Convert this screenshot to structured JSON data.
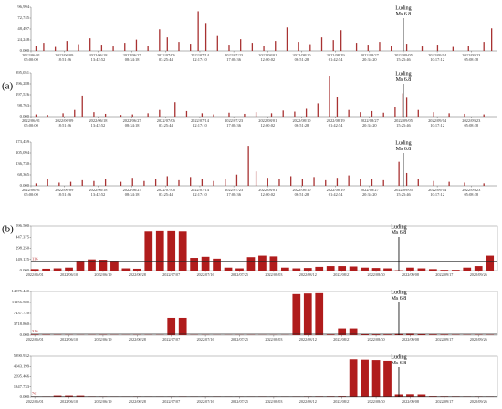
{
  "chart_data": [
    {
      "type": "bar",
      "panel_label": "(a)",
      "color": "#a83232",
      "xlim": [
        "2022/06/01 05:00:00",
        "2022/09/30 00:00:00"
      ],
      "xticks": [
        "2022/06/01 05:00:00",
        "2022/06/09 18:51:26",
        "2022/06/18 13:42:52",
        "2022/06/27 08:34:18",
        "2022/07/06 03:25:44",
        "2022/07/14 22:17:10",
        "2022/07/23 17:08:36",
        "2022/08/01 12:00:02",
        "2022/08/10 06:51:28",
        "2022/08/19 01:42:54",
        "2022/08/27 20:34:20",
        "2022/09/05 15:25:46",
        "2022/09/14 10:17:12",
        "2022/09/23 05:08:38"
      ],
      "ylim": [
        0,
        96994
      ],
      "yticks": [
        {
          "value": 0,
          "label": "0.000"
        },
        {
          "value": 24248,
          "label": "24,248"
        },
        {
          "value": 48497,
          "label": "48,497"
        },
        {
          "value": 72745,
          "label": "72,745"
        },
        {
          "value": 96994,
          "label": "96,994"
        }
      ],
      "event": {
        "x": "2022/09/05 15:25:46",
        "label": "Luding",
        "magnitude": "Ms 6.8"
      },
      "x": [
        "2022/06/02 12:00:00",
        "2022/06/04 12:00:00",
        "2022/06/07 12:00:00",
        "2022/06/10 12:00:00",
        "2022/06/13 12:00:00",
        "2022/06/16 12:00:00",
        "2022/06/19 12:00:00",
        "2022/06/22 12:00:00",
        "2022/06/25 12:00:00",
        "2022/06/28 12:00:00",
        "2022/07/01 12:00:00",
        "2022/07/04 12:00:00",
        "2022/07/06 12:00:00",
        "2022/07/09 12:00:00",
        "2022/07/12 12:00:00",
        "2022/07/14 12:00:00",
        "2022/07/16 12:00:00",
        "2022/07/19 12:00:00",
        "2022/07/22 12:00:00",
        "2022/07/25 12:00:00",
        "2022/07/28 12:00:00",
        "2022/07/31 12:00:00",
        "2022/08/03 12:00:00",
        "2022/08/06 12:00:00",
        "2022/08/09 12:00:00",
        "2022/08/12 12:00:00",
        "2022/08/15 12:00:00",
        "2022/08/18 12:00:00",
        "2022/08/20 12:00:00",
        "2022/08/24 12:00:00",
        "2022/08/27 12:00:00",
        "2022/08/30 12:00:00",
        "2022/09/02 12:00:00",
        "2022/09/06 12:00:00",
        "2022/09/10 12:00:00",
        "2022/09/14 12:00:00",
        "2022/09/18 12:00:00",
        "2022/09/22 12:00:00",
        "2022/09/26 12:00:00",
        "2022/09/28 12:00:00"
      ],
      "values": [
        12000,
        18000,
        9000,
        22000,
        15000,
        28000,
        14000,
        10000,
        18000,
        25000,
        12000,
        48000,
        30000,
        20000,
        16000,
        88000,
        62000,
        35000,
        14000,
        26000,
        18000,
        12000,
        22000,
        52000,
        20000,
        15000,
        30000,
        24000,
        46000,
        18000,
        14000,
        20000,
        12000,
        16000,
        10000,
        14000,
        9000,
        12000,
        20000,
        50000
      ]
    },
    {
      "type": "bar",
      "color": "#a83232",
      "xlim": [
        "2022/06/01 05:00:00",
        "2022/09/30 00:00:00"
      ],
      "xticks": [
        "2022/06/01 05:00:00",
        "2022/06/09 18:51:26",
        "2022/06/18 13:42:52",
        "2022/06/27 08:34:18",
        "2022/07/06 03:25:44",
        "2022/07/14 22:17:10",
        "2022/07/23 17:08:36",
        "2022/08/01 12:00:02",
        "2022/08/10 06:51:28",
        "2022/08/19 01:42:54",
        "2022/08/27 20:34:20",
        "2022/09/05 15:25:46",
        "2022/09/14 10:17:12",
        "2022/09/23 05:08:38"
      ],
      "ylim": [
        0,
        395051
      ],
      "yticks": [
        {
          "value": 0,
          "label": "0.000"
        },
        {
          "value": 98763,
          "label": "98,763"
        },
        {
          "value": 197526,
          "label": "197,526"
        },
        {
          "value": 296288,
          "label": "296,288"
        },
        {
          "value": 395051,
          "label": "395,051"
        }
      ],
      "event": {
        "x": "2022/09/05 15:25:46",
        "label": "Luding",
        "magnitude": "Ms 6.8"
      },
      "x": [
        "2022/06/02 12:00:00",
        "2022/06/05 12:00:00",
        "2022/06/09 12:00:00",
        "2022/06/12 12:00:00",
        "2022/06/14 12:00:00",
        "2022/06/17 12:00:00",
        "2022/06/20 12:00:00",
        "2022/06/24 12:00:00",
        "2022/06/27 12:00:00",
        "2022/07/01 12:00:00",
        "2022/07/04 12:00:00",
        "2022/07/08 12:00:00",
        "2022/07/11 12:00:00",
        "2022/07/15 12:00:00",
        "2022/07/18 12:00:00",
        "2022/07/22 12:00:00",
        "2022/07/26 12:00:00",
        "2022/07/29 12:00:00",
        "2022/08/02 12:00:00",
        "2022/08/05 12:00:00",
        "2022/08/08 12:00:00",
        "2022/08/11 12:00:00",
        "2022/08/14 12:00:00",
        "2022/08/17 12:00:00",
        "2022/08/19 12:00:00",
        "2022/08/22 12:00:00",
        "2022/08/25 12:00:00",
        "2022/08/28 12:00:00",
        "2022/08/31 12:00:00",
        "2022/09/03 12:00:00",
        "2022/09/05 12:00:00",
        "2022/09/06 12:00:00",
        "2022/09/09 12:00:00",
        "2022/09/13 12:00:00",
        "2022/09/17 12:00:00",
        "2022/09/21 12:00:00",
        "2022/09/26 12:00:00"
      ],
      "values": [
        20000,
        15000,
        30000,
        60000,
        190000,
        40000,
        25000,
        15000,
        20000,
        30000,
        60000,
        130000,
        50000,
        30000,
        20000,
        35000,
        25000,
        40000,
        30000,
        55000,
        45000,
        70000,
        120000,
        370000,
        180000,
        60000,
        40000,
        50000,
        35000,
        90000,
        210000,
        170000,
        60000,
        40000,
        30000,
        25000,
        20000
      ]
    },
    {
      "type": "bar",
      "color": "#a83232",
      "xlim": [
        "2022/06/01 05:00:00",
        "2022/09/30 00:00:00"
      ],
      "xticks": [
        "2022/06/01 05:00:00",
        "2022/06/09 18:51:26",
        "2022/06/18 13:42:52",
        "2022/06/27 08:34:18",
        "2022/07/06 03:25:44",
        "2022/07/14 22:17:10",
        "2022/07/23 17:08:36",
        "2022/08/01 12:00:02",
        "2022/08/10 06:51:28",
        "2022/08/19 01:42:54",
        "2022/08/27 20:34:20",
        "2022/09/05 15:25:46",
        "2022/09/14 10:17:12",
        "2022/09/23 05:08:38"
      ],
      "ylim": [
        0,
        273459
      ],
      "yticks": [
        {
          "value": 0,
          "label": "0.000"
        },
        {
          "value": 68365,
          "label": "68,365"
        },
        {
          "value": 136730,
          "label": "136,730"
        },
        {
          "value": 205094,
          "label": "205,094"
        },
        {
          "value": 273459,
          "label": "273,459"
        }
      ],
      "event": {
        "x": "2022/09/05 15:25:46",
        "label": "Luding",
        "magnitude": "Ms 6.8"
      },
      "x": [
        "2022/06/02 12:00:00",
        "2022/06/05 12:00:00",
        "2022/06/08 12:00:00",
        "2022/06/11 12:00:00",
        "2022/06/14 12:00:00",
        "2022/06/17 12:00:00",
        "2022/06/20 12:00:00",
        "2022/06/24 12:00:00",
        "2022/06/27 12:00:00",
        "2022/06/30 12:00:00",
        "2022/07/03 12:00:00",
        "2022/07/06 12:00:00",
        "2022/07/09 12:00:00",
        "2022/07/12 12:00:00",
        "2022/07/15 12:00:00",
        "2022/07/18 12:00:00",
        "2022/07/21 12:00:00",
        "2022/07/24 12:00:00",
        "2022/07/27 12:00:00",
        "2022/07/29 12:00:00",
        "2022/08/01 12:00:00",
        "2022/08/04 12:00:00",
        "2022/08/07 12:00:00",
        "2022/08/10 12:00:00",
        "2022/08/13 12:00:00",
        "2022/08/16 12:00:00",
        "2022/08/19 12:00:00",
        "2022/08/22 12:00:00",
        "2022/08/25 12:00:00",
        "2022/08/28 12:00:00",
        "2022/08/31 12:00:00",
        "2022/09/04 12:00:00",
        "2022/09/06 12:00:00",
        "2022/09/09 12:00:00",
        "2022/09/13 12:00:00",
        "2022/09/17 12:00:00",
        "2022/09/21 12:00:00",
        "2022/09/26 12:00:00"
      ],
      "values": [
        15000,
        40000,
        20000,
        25000,
        35000,
        30000,
        45000,
        25000,
        50000,
        30000,
        40000,
        60000,
        35000,
        55000,
        45000,
        30000,
        40000,
        70000,
        250000,
        90000,
        50000,
        45000,
        60000,
        40000,
        55000,
        35000,
        50000,
        65000,
        40000,
        45000,
        35000,
        150000,
        80000,
        40000,
        30000,
        25000,
        20000,
        15000
      ]
    },
    {
      "type": "bar",
      "panel_label": "(b)",
      "color": "#b01c1c",
      "xlim": [
        "2022/05/31",
        "2022/10/01"
      ],
      "xticks": [
        "2022/06/01",
        "2022/06/10",
        "2022/06/19",
        "2022/06/28",
        "2022/07/07",
        "2022/07/16",
        "2022/07/25",
        "2022/08/03",
        "2022/08/12",
        "2022/08/21",
        "2022/08/30",
        "2022/09/08",
        "2022/09/17",
        "2022/09/26"
      ],
      "ylim": [
        0,
        596.5
      ],
      "yticks": [
        {
          "value": 0,
          "label": "0.000"
        },
        {
          "value": 149.125,
          "label": "149.125"
        },
        {
          "value": 298.25,
          "label": "298.250"
        },
        {
          "value": 447.375,
          "label": "447.375"
        },
        {
          "value": 596.5,
          "label": "596.500"
        }
      ],
      "threshold": 116,
      "event": {
        "x": "2022/09/05",
        "label": "Luding",
        "magnitude": "Ms 6.8"
      },
      "x": [
        "2022/06/01",
        "2022/06/04",
        "2022/06/07",
        "2022/06/10",
        "2022/06/13",
        "2022/06/16",
        "2022/06/19",
        "2022/06/22",
        "2022/06/25",
        "2022/06/28",
        "2022/07/01",
        "2022/07/04",
        "2022/07/07",
        "2022/07/10",
        "2022/07/13",
        "2022/07/16",
        "2022/07/19",
        "2022/07/22",
        "2022/07/25",
        "2022/07/28",
        "2022/07/31",
        "2022/08/03",
        "2022/08/06",
        "2022/08/09",
        "2022/08/12",
        "2022/08/15",
        "2022/08/18",
        "2022/08/21",
        "2022/08/24",
        "2022/08/27",
        "2022/08/30",
        "2022/09/02",
        "2022/09/05",
        "2022/09/08",
        "2022/09/11",
        "2022/09/14",
        "2022/09/17",
        "2022/09/20",
        "2022/09/23",
        "2022/09/26",
        "2022/09/29"
      ],
      "values": [
        20,
        25,
        30,
        40,
        120,
        150,
        145,
        120,
        30,
        25,
        520,
        525,
        525,
        520,
        170,
        185,
        160,
        40,
        30,
        180,
        200,
        190,
        40,
        30,
        35,
        50,
        60,
        60,
        55,
        40,
        35,
        30,
        5,
        40,
        30,
        20,
        10,
        10,
        40,
        60,
        200
      ]
    },
    {
      "type": "bar",
      "color": "#b01c1c",
      "xlim": [
        "2022/05/31",
        "2022/10/01"
      ],
      "xticks": [
        "2022/06/01",
        "2022/06/10",
        "2022/06/19",
        "2022/06/28",
        "2022/07/07",
        "2022/07/16",
        "2022/07/25",
        "2022/08/03",
        "2022/08/12",
        "2022/08/21",
        "2022/08/30",
        "2022/09/08",
        "2022/09/17",
        "2022/09/26"
      ],
      "ylim": [
        0,
        14875.44
      ],
      "yticks": [
        {
          "value": 0,
          "label": "0.000"
        },
        {
          "value": 3718.86,
          "label": "3718.860"
        },
        {
          "value": 7437.72,
          "label": "7437.720"
        },
        {
          "value": 11156.58,
          "label": "11156.580"
        },
        {
          "value": 14875.44,
          "label": "14875.440"
        }
      ],
      "threshold": 316,
      "event": {
        "x": "2022/09/05",
        "label": "Luding",
        "magnitude": "Ms 6.8"
      },
      "x": [
        "2022/06/01",
        "2022/06/04",
        "2022/06/07",
        "2022/06/10",
        "2022/06/13",
        "2022/06/16",
        "2022/06/19",
        "2022/06/22",
        "2022/06/25",
        "2022/06/28",
        "2022/07/01",
        "2022/07/04",
        "2022/07/07",
        "2022/07/10",
        "2022/07/13",
        "2022/07/16",
        "2022/07/19",
        "2022/07/22",
        "2022/07/25",
        "2022/07/28",
        "2022/07/31",
        "2022/08/03",
        "2022/08/06",
        "2022/08/09",
        "2022/08/12",
        "2022/08/15",
        "2022/08/18",
        "2022/08/21",
        "2022/08/24",
        "2022/08/27",
        "2022/08/30",
        "2022/09/02",
        "2022/09/05",
        "2022/09/08",
        "2022/09/11",
        "2022/09/14",
        "2022/09/17",
        "2022/09/20",
        "2022/09/23",
        "2022/09/26",
        "2022/09/29"
      ],
      "values": [
        150,
        100,
        80,
        60,
        50,
        60,
        80,
        60,
        50,
        60,
        60,
        60,
        5900,
        5900,
        60,
        50,
        40,
        40,
        50,
        60,
        40,
        40,
        40,
        14000,
        14200,
        14300,
        200,
        2300,
        2300,
        300,
        250,
        200,
        400,
        500,
        300,
        200,
        150,
        100,
        80,
        100,
        90
      ]
    },
    {
      "type": "bar",
      "color": "#b01c1c",
      "xlim": [
        "2022/05/31",
        "2022/10/01"
      ],
      "xticks": [
        "2022/06/01",
        "2022/06/10",
        "2022/06/19",
        "2022/06/28",
        "2022/07/07",
        "2022/07/16",
        "2022/07/25",
        "2022/08/03",
        "2022/08/12",
        "2022/08/21",
        "2022/08/30",
        "2022/09/08",
        "2022/09/17",
        "2022/09/26"
      ],
      "ylim": [
        0,
        5390.932
      ],
      "yticks": [
        {
          "value": 0,
          "label": "0.000"
        },
        {
          "value": 1347.733,
          "label": "1347.733"
        },
        {
          "value": 2695.466,
          "label": "2695.466"
        },
        {
          "value": 4043.199,
          "label": "4043.199"
        },
        {
          "value": 5390.932,
          "label": "5390.932"
        }
      ],
      "threshold": 76,
      "event": {
        "x": "2022/09/05",
        "label": "Luding",
        "magnitude": "Ms 6.8"
      },
      "x": [
        "2022/06/01",
        "2022/06/04",
        "2022/06/07",
        "2022/06/10",
        "2022/06/13",
        "2022/06/16",
        "2022/06/19",
        "2022/06/22",
        "2022/06/25",
        "2022/06/28",
        "2022/07/01",
        "2022/07/04",
        "2022/07/07",
        "2022/07/10",
        "2022/07/13",
        "2022/07/16",
        "2022/07/19",
        "2022/07/22",
        "2022/07/25",
        "2022/07/28",
        "2022/07/31",
        "2022/08/03",
        "2022/08/06",
        "2022/08/09",
        "2022/08/12",
        "2022/08/15",
        "2022/08/18",
        "2022/08/21",
        "2022/08/24",
        "2022/08/27",
        "2022/08/30",
        "2022/09/02",
        "2022/09/05",
        "2022/09/08",
        "2022/09/11",
        "2022/09/14",
        "2022/09/17",
        "2022/09/20",
        "2022/09/23",
        "2022/09/26",
        "2022/09/29"
      ],
      "values": [
        10,
        15,
        170,
        170,
        165,
        20,
        15,
        10,
        10,
        15,
        10,
        10,
        10,
        15,
        10,
        10,
        15,
        10,
        10,
        10,
        15,
        10,
        10,
        15,
        20,
        30,
        40,
        60,
        5000,
        4950,
        4900,
        4800,
        300,
        320,
        300,
        60,
        40,
        30,
        20,
        20,
        15
      ]
    }
  ]
}
